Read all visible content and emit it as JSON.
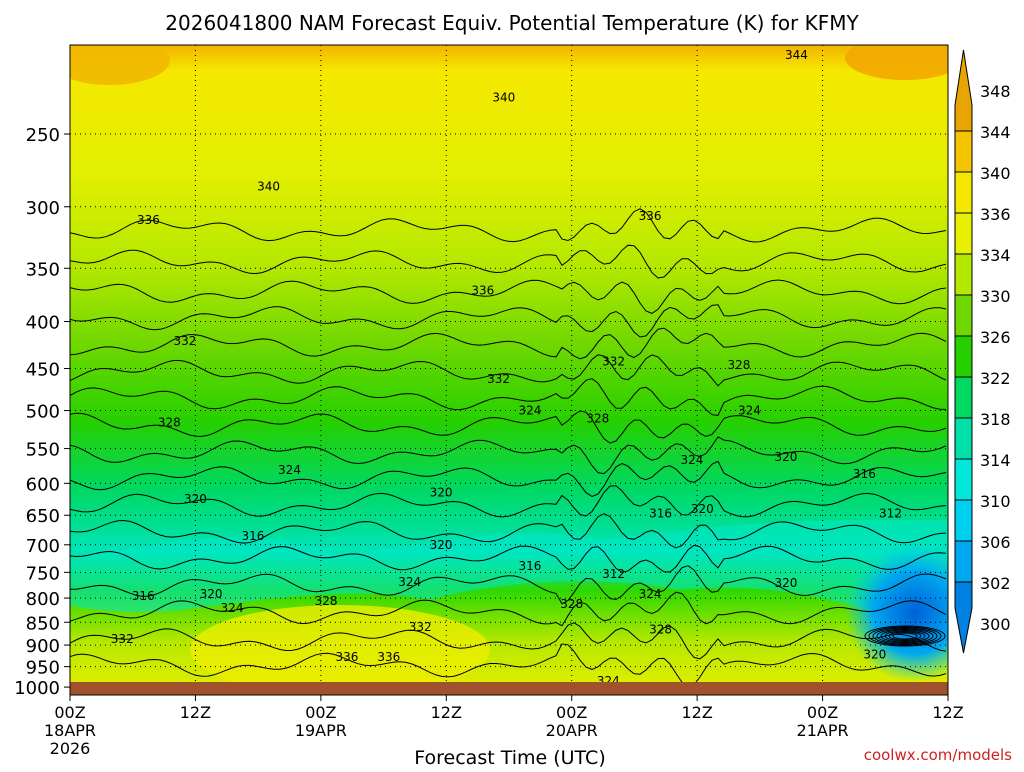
{
  "chart_data": {
    "type": "heatmap",
    "title": "2026041800 NAM Forecast Equiv. Potential Temperature (K) for KFMY",
    "xlabel": "Forecast Time (UTC)",
    "ylabel": "",
    "watermark": "coolwx.com/models",
    "x_ticks": [
      {
        "hour": 0,
        "label": "00Z",
        "date": "18APR",
        "year": "2026"
      },
      {
        "hour": 12,
        "label": "12Z",
        "date": "",
        "year": ""
      },
      {
        "hour": 24,
        "label": "00Z",
        "date": "19APR",
        "year": ""
      },
      {
        "hour": 36,
        "label": "12Z",
        "date": "",
        "year": ""
      },
      {
        "hour": 48,
        "label": "00Z",
        "date": "20APR",
        "year": ""
      },
      {
        "hour": 60,
        "label": "12Z",
        "date": "",
        "year": ""
      },
      {
        "hour": 72,
        "label": "00Z",
        "date": "21APR",
        "year": ""
      },
      {
        "hour": 84,
        "label": "12Z",
        "date": "",
        "year": ""
      }
    ],
    "y_ticks": [
      250,
      300,
      350,
      400,
      450,
      500,
      550,
      600,
      650,
      700,
      750,
      800,
      850,
      900,
      950,
      1000
    ],
    "y_scale": "log-pressure",
    "ylim": [
      1020,
      200
    ],
    "xlim": [
      0,
      84
    ],
    "grid": true,
    "colorbar": {
      "labels": [
        348,
        344,
        340,
        336,
        334,
        330,
        326,
        322,
        318,
        314,
        310,
        306,
        302,
        300
      ],
      "colors": [
        "#e8a400",
        "#f5c400",
        "#f5e800",
        "#e6f000",
        "#b4e800",
        "#6fd800",
        "#26d000",
        "#00d860",
        "#00e0a8",
        "#00e8d8",
        "#00d0f0",
        "#00a8f0",
        "#0080e0"
      ]
    },
    "contour_labels": [
      {
        "text": "344",
        "hour": 69.5,
        "p": 205
      },
      {
        "text": "340",
        "hour": 41.5,
        "p": 228
      },
      {
        "text": "340",
        "hour": 19,
        "p": 285
      },
      {
        "text": "336",
        "hour": 7.5,
        "p": 310
      },
      {
        "text": "336",
        "hour": 55.5,
        "p": 307
      },
      {
        "text": "336",
        "hour": 39.5,
        "p": 370
      },
      {
        "text": "332",
        "hour": 11,
        "p": 420
      },
      {
        "text": "332",
        "hour": 41,
        "p": 462
      },
      {
        "text": "332",
        "hour": 52,
        "p": 442
      },
      {
        "text": "328",
        "hour": 64,
        "p": 446
      },
      {
        "text": "328",
        "hour": 9.5,
        "p": 515
      },
      {
        "text": "328",
        "hour": 50.5,
        "p": 510
      },
      {
        "text": "324",
        "hour": 44,
        "p": 500
      },
      {
        "text": "324",
        "hour": 65,
        "p": 500
      },
      {
        "text": "324",
        "hour": 21,
        "p": 580
      },
      {
        "text": "324",
        "hour": 59.5,
        "p": 566
      },
      {
        "text": "320",
        "hour": 35.5,
        "p": 614
      },
      {
        "text": "320",
        "hour": 12,
        "p": 624
      },
      {
        "text": "320",
        "hour": 68.5,
        "p": 562
      },
      {
        "text": "320",
        "hour": 60.5,
        "p": 640
      },
      {
        "text": "316",
        "hour": 76,
        "p": 586
      },
      {
        "text": "316",
        "hour": 56.5,
        "p": 647
      },
      {
        "text": "316",
        "hour": 17.5,
        "p": 685
      },
      {
        "text": "316",
        "hour": 44,
        "p": 738
      },
      {
        "text": "316",
        "hour": 7,
        "p": 796
      },
      {
        "text": "312",
        "hour": 78.5,
        "p": 647
      },
      {
        "text": "312",
        "hour": 52,
        "p": 753
      },
      {
        "text": "320",
        "hour": 35.5,
        "p": 700
      },
      {
        "text": "320",
        "hour": 13.5,
        "p": 792
      },
      {
        "text": "320",
        "hour": 68.5,
        "p": 770
      },
      {
        "text": "320",
        "hour": 77,
        "p": 922
      },
      {
        "text": "324",
        "hour": 15.5,
        "p": 820
      },
      {
        "text": "324",
        "hour": 32.5,
        "p": 768
      },
      {
        "text": "324",
        "hour": 55.5,
        "p": 792
      },
      {
        "text": "324",
        "hour": 51.5,
        "p": 985
      },
      {
        "text": "328",
        "hour": 24.5,
        "p": 806
      },
      {
        "text": "328",
        "hour": 48,
        "p": 812
      },
      {
        "text": "328",
        "hour": 56.5,
        "p": 866
      },
      {
        "text": "332",
        "hour": 5,
        "p": 886
      },
      {
        "text": "332",
        "hour": 33.5,
        "p": 860
      },
      {
        "text": "336",
        "hour": 26.5,
        "p": 927
      },
      {
        "text": "336",
        "hour": 30.5,
        "p": 927
      }
    ]
  }
}
